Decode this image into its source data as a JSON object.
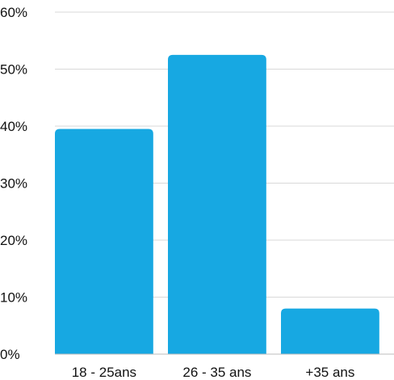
{
  "chart_data": {
    "type": "bar",
    "categories": [
      "18 - 25ans",
      "26 - 35 ans",
      "+35 ans"
    ],
    "values": [
      39.5,
      52.5,
      8
    ],
    "title": "",
    "xlabel": "",
    "ylabel": "",
    "ylim": [
      0,
      60
    ],
    "yticks": [
      "0%",
      "10%",
      "20%",
      "30%",
      "40%",
      "50%",
      "60%"
    ],
    "grid": true,
    "bar_color": "#17a8e2"
  }
}
